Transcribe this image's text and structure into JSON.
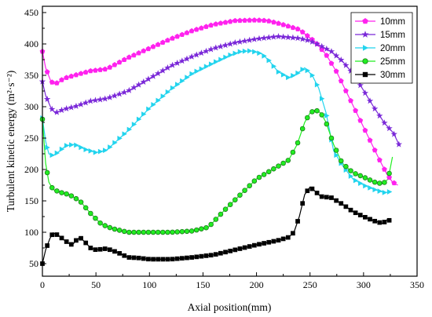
{
  "chart_data": {
    "type": "line",
    "xlabel": "Axial position(mm)",
    "ylabel": "Turbulent kinetic energy (m²·s⁻²)",
    "xlim": [
      0,
      350
    ],
    "ylim": [
      30,
      460
    ],
    "xticks": [
      0,
      50,
      100,
      150,
      200,
      250,
      300,
      350
    ],
    "yticks": [
      50,
      100,
      150,
      200,
      250,
      300,
      350,
      400,
      450
    ],
    "grid": false,
    "legend_position": "top-right",
    "series": [
      {
        "name": "10mm",
        "color": "#ff22ee",
        "marker": "pentagon",
        "points": [
          [
            0,
            388
          ],
          [
            3,
            362
          ],
          [
            8,
            340
          ],
          [
            12,
            336
          ],
          [
            20,
            345
          ],
          [
            30,
            350
          ],
          [
            45,
            357
          ],
          [
            60,
            360
          ],
          [
            80,
            378
          ],
          [
            100,
            393
          ],
          [
            120,
            408
          ],
          [
            140,
            421
          ],
          [
            160,
            431
          ],
          [
            180,
            437
          ],
          [
            200,
            438
          ],
          [
            210,
            437
          ],
          [
            220,
            433
          ],
          [
            240,
            423
          ],
          [
            255,
            403
          ],
          [
            265,
            383
          ],
          [
            275,
            355
          ],
          [
            285,
            320
          ],
          [
            295,
            285
          ],
          [
            305,
            250
          ],
          [
            315,
            215
          ],
          [
            322,
            192
          ],
          [
            327,
            180
          ],
          [
            332,
            175
          ]
        ]
      },
      {
        "name": "15mm",
        "color": "#7a28d8",
        "marker": "star",
        "points": [
          [
            0,
            340
          ],
          [
            3,
            318
          ],
          [
            8,
            298
          ],
          [
            12,
            290
          ],
          [
            20,
            296
          ],
          [
            30,
            300
          ],
          [
            45,
            309
          ],
          [
            60,
            313
          ],
          [
            80,
            325
          ],
          [
            100,
            345
          ],
          [
            120,
            365
          ],
          [
            140,
            380
          ],
          [
            160,
            393
          ],
          [
            180,
            402
          ],
          [
            200,
            408
          ],
          [
            220,
            412
          ],
          [
            240,
            409
          ],
          [
            250,
            405
          ],
          [
            260,
            397
          ],
          [
            270,
            388
          ],
          [
            280,
            373
          ],
          [
            290,
            353
          ],
          [
            300,
            326
          ],
          [
            310,
            298
          ],
          [
            320,
            273
          ],
          [
            328,
            258
          ],
          [
            333,
            240
          ]
        ]
      },
      {
        "name": "20mm",
        "color": "#22d4ee",
        "marker": "triangle-right",
        "points": [
          [
            0,
            282
          ],
          [
            3,
            245
          ],
          [
            6,
            225
          ],
          [
            10,
            222
          ],
          [
            15,
            228
          ],
          [
            22,
            238
          ],
          [
            30,
            240
          ],
          [
            40,
            232
          ],
          [
            50,
            227
          ],
          [
            60,
            231
          ],
          [
            80,
            262
          ],
          [
            100,
            298
          ],
          [
            120,
            328
          ],
          [
            140,
            353
          ],
          [
            160,
            370
          ],
          [
            175,
            382
          ],
          [
            185,
            388
          ],
          [
            195,
            389
          ],
          [
            205,
            384
          ],
          [
            212,
            373
          ],
          [
            220,
            356
          ],
          [
            230,
            346
          ],
          [
            238,
            353
          ],
          [
            245,
            362
          ],
          [
            252,
            350
          ],
          [
            258,
            330
          ],
          [
            265,
            290
          ],
          [
            272,
            230
          ],
          [
            280,
            207
          ],
          [
            290,
            185
          ],
          [
            300,
            175
          ],
          [
            310,
            168
          ],
          [
            320,
            163
          ],
          [
            326,
            165
          ]
        ]
      },
      {
        "name": "25mm",
        "color": "#22ee22",
        "marker": "circle",
        "points": [
          [
            0,
            280
          ],
          [
            3,
            210
          ],
          [
            6,
            180
          ],
          [
            10,
            168
          ],
          [
            18,
            163
          ],
          [
            25,
            160
          ],
          [
            35,
            150
          ],
          [
            45,
            130
          ],
          [
            55,
            113
          ],
          [
            65,
            106
          ],
          [
            80,
            100
          ],
          [
            100,
            100
          ],
          [
            120,
            100
          ],
          [
            140,
            102
          ],
          [
            155,
            108
          ],
          [
            170,
            135
          ],
          [
            185,
            160
          ],
          [
            200,
            185
          ],
          [
            215,
            200
          ],
          [
            230,
            215
          ],
          [
            238,
            240
          ],
          [
            245,
            275
          ],
          [
            250,
            290
          ],
          [
            255,
            295
          ],
          [
            260,
            290
          ],
          [
            265,
            275
          ],
          [
            272,
            240
          ],
          [
            280,
            210
          ],
          [
            290,
            195
          ],
          [
            300,
            188
          ],
          [
            310,
            180
          ],
          [
            318,
            177
          ],
          [
            323,
            185
          ],
          [
            327,
            220
          ]
        ]
      },
      {
        "name": "30mm",
        "color": "#000000",
        "marker": "square",
        "points": [
          [
            0,
            50
          ],
          [
            3,
            72
          ],
          [
            7,
            90
          ],
          [
            10,
            99
          ],
          [
            15,
            95
          ],
          [
            20,
            88
          ],
          [
            25,
            82
          ],
          [
            28,
            80
          ],
          [
            32,
            88
          ],
          [
            35,
            92
          ],
          [
            40,
            84
          ],
          [
            45,
            75
          ],
          [
            50,
            72
          ],
          [
            60,
            74
          ],
          [
            70,
            68
          ],
          [
            80,
            60
          ],
          [
            90,
            59
          ],
          [
            100,
            57
          ],
          [
            120,
            57
          ],
          [
            140,
            60
          ],
          [
            160,
            64
          ],
          [
            180,
            72
          ],
          [
            200,
            80
          ],
          [
            220,
            87
          ],
          [
            230,
            92
          ],
          [
            235,
            100
          ],
          [
            240,
            125
          ],
          [
            245,
            160
          ],
          [
            250,
            172
          ],
          [
            255,
            165
          ],
          [
            260,
            157
          ],
          [
            270,
            155
          ],
          [
            280,
            145
          ],
          [
            290,
            133
          ],
          [
            300,
            125
          ],
          [
            310,
            118
          ],
          [
            318,
            114
          ],
          [
            322,
            120
          ],
          [
            326,
            118
          ]
        ]
      }
    ]
  }
}
